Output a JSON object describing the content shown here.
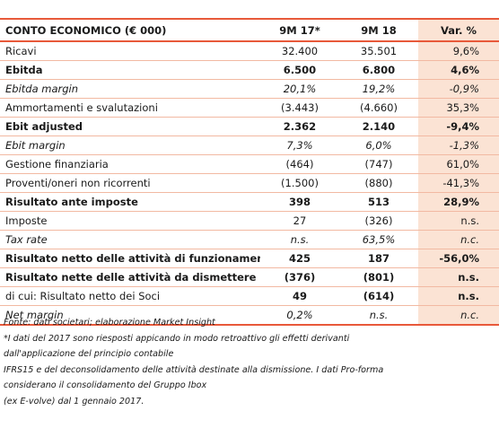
{
  "header": {
    "label": "CONTO ECONOMICO (€ 000)",
    "col_a": "9M 17*",
    "col_b": "9M 18",
    "col_var": "Var. %"
  },
  "rows": [
    {
      "label": "Ricavi",
      "a": "32.400",
      "b": "35.501",
      "var": "9,6%",
      "style": "normal"
    },
    {
      "label": "Ebitda",
      "a": "6.500",
      "b": "6.800",
      "var": "4,6%",
      "style": "bold"
    },
    {
      "label": "Ebitda margin",
      "a": "20,1%",
      "b": "19,2%",
      "var": "-0,9%",
      "style": "italic"
    },
    {
      "label": "Ammortamenti e svalutazioni",
      "a": "(3.443)",
      "b": "(4.660)",
      "var": "35,3%",
      "style": "normal"
    },
    {
      "label": "Ebit adjusted",
      "a": "2.362",
      "b": "2.140",
      "var": "-9,4%",
      "style": "bold"
    },
    {
      "label": "Ebit margin",
      "a": "7,3%",
      "b": "6,0%",
      "var": "-1,3%",
      "style": "italic"
    },
    {
      "label": "Gestione finanziaria",
      "a": "(464)",
      "b": "(747)",
      "var": "61,0%",
      "style": "normal"
    },
    {
      "label": "Proventi/oneri non ricorrenti",
      "a": "(1.500)",
      "b": "(880)",
      "var": "-41,3%",
      "style": "normal"
    },
    {
      "label": "Risultato ante imposte",
      "a": "398",
      "b": "513",
      "var": "28,9%",
      "style": "bold"
    },
    {
      "label": "Imposte",
      "a": "27",
      "b": "(326)",
      "var": "n.s.",
      "style": "normal"
    },
    {
      "label": "Tax rate",
      "a": "n.s.",
      "b": "63,5%",
      "var": "n.c.",
      "style": "italic"
    },
    {
      "label": "Risultato netto delle attività di funzionamento",
      "a": "425",
      "b": "187",
      "var": "-56,0%",
      "style": "bold"
    },
    {
      "label": "Risultato nette delle attività da dismettere",
      "a": "(376)",
      "b": "(801)",
      "var": "n.s.",
      "style": "bold"
    },
    {
      "label": "di cui: Risultato netto dei Soci",
      "a": "49",
      "b": "(614)",
      "var": "n.s.",
      "style": "mixed"
    },
    {
      "label": "Net margin",
      "a": "0,2%",
      "b": "n.s.",
      "var": "n.c.",
      "style": "italic"
    }
  ],
  "notes": [
    "Fonte: dati societari; elaborazione Market Insight",
    "*I dati del 2017 sono riesposti appicando in modo retroattivo gli effetti derivanti",
    "dall'applicazione del principio contabile",
    "IFRS15 e del deconsolidamento delle attività destinate alla dismissione. I dati Pro-forma",
    "considerano il consolidamento del Gruppo Ibox",
    "(ex E-volve) dal 1 gennaio 2017."
  ],
  "colors": {
    "accent": "#e8593a",
    "highlight": "#fbe3d4"
  }
}
